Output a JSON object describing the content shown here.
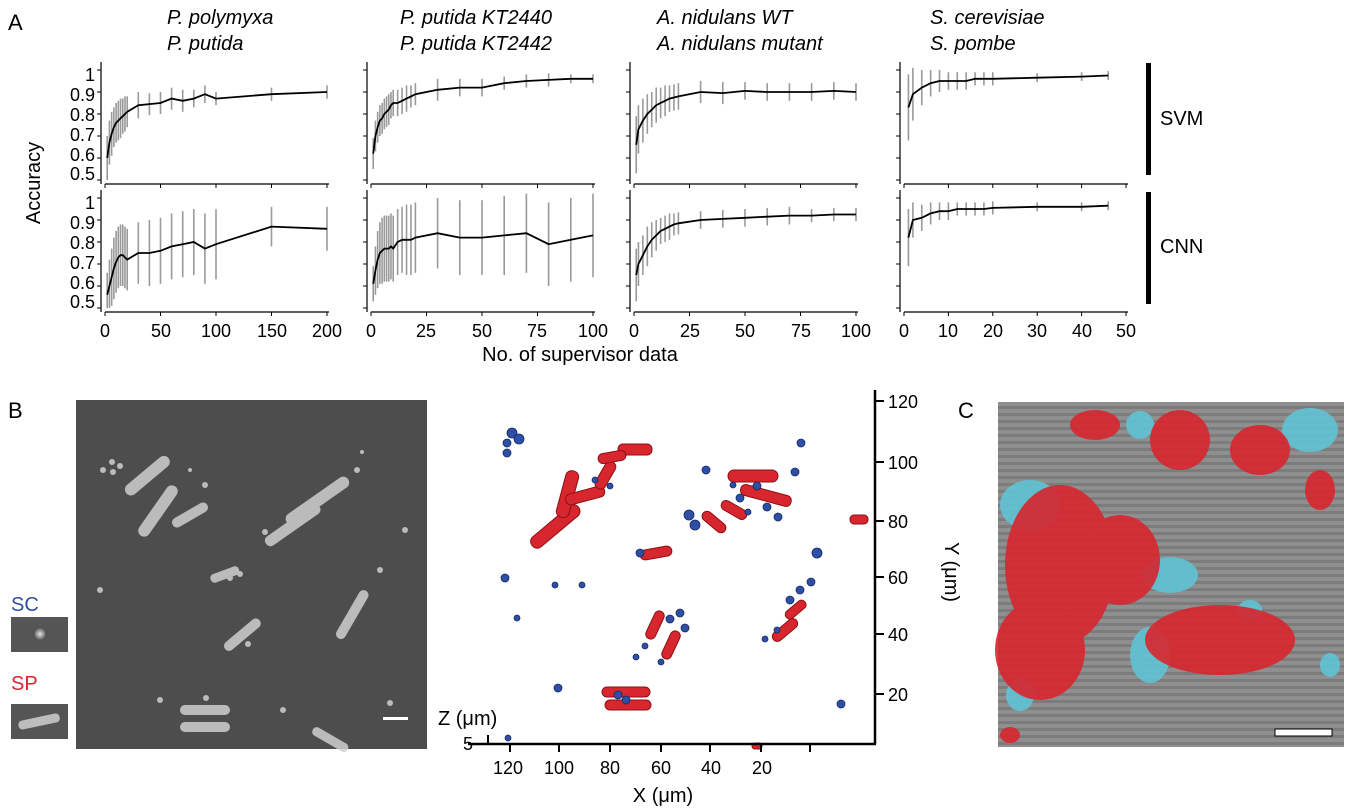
{
  "panel_labels": {
    "a": "A",
    "b": "B",
    "c": "C"
  },
  "colors": {
    "line": "#000000",
    "errorbar": "#9a9a9a",
    "sc": "#2e4fa3",
    "sp": "#d8262e"
  },
  "panel_a": {
    "ylabel": "Accuracy",
    "xlabel": "No. of supervisor data",
    "row_labels": [
      "SVM",
      "CNN"
    ],
    "yticks": [
      "1",
      "0.9",
      "0.8",
      "0.7",
      "0.6",
      "0.5"
    ],
    "column_titles": [
      [
        "P. polymyxa",
        "P. putida"
      ],
      [
        "P. putida KT2440",
        "P. putida KT2442"
      ],
      [
        "A. nidulans WT",
        "A. nidulans mutant"
      ],
      [
        "S. cerevisiae",
        "S. pombe"
      ]
    ],
    "xticks": [
      [
        "0",
        "50",
        "100",
        "150",
        "200"
      ],
      [
        "0",
        "25",
        "50",
        "75",
        "100"
      ],
      [
        "0",
        "25",
        "50",
        "75",
        "100"
      ],
      [
        "0",
        "10",
        "20",
        "30",
        "40",
        "50"
      ]
    ]
  },
  "panel_b": {
    "sc_label": "SC",
    "sp_label": "SP",
    "y_axis_label": "Y (μm)",
    "x_axis_label": "X (μm)",
    "z_axis_label": "Z (μm)",
    "y_ticks": [
      "120",
      "100",
      "80",
      "60",
      "40",
      "20"
    ],
    "x_ticks": [
      "120",
      "100",
      "80",
      "60",
      "40",
      "20"
    ],
    "z_tick": "5"
  },
  "chart_data": [
    {
      "type": "line",
      "title": "P. polymyxa / P. putida",
      "row": "SVM",
      "xlabel": "No. of supervisor data",
      "ylabel": "Accuracy",
      "xlim": [
        0,
        200
      ],
      "ylim": [
        0.5,
        1.05
      ],
      "x": [
        2,
        4,
        6,
        8,
        10,
        12,
        14,
        16,
        18,
        20,
        30,
        40,
        50,
        60,
        70,
        80,
        90,
        100,
        150,
        200
      ],
      "y": [
        0.6,
        0.67,
        0.71,
        0.74,
        0.76,
        0.77,
        0.78,
        0.79,
        0.8,
        0.81,
        0.84,
        0.845,
        0.85,
        0.87,
        0.86,
        0.87,
        0.89,
        0.87,
        0.89,
        0.9
      ],
      "err": [
        0.1,
        0.1,
        0.1,
        0.09,
        0.09,
        0.09,
        0.09,
        0.08,
        0.08,
        0.07,
        0.06,
        0.05,
        0.05,
        0.05,
        0.05,
        0.04,
        0.04,
        0.03,
        0.03,
        0.03
      ]
    },
    {
      "type": "line",
      "title": "P. putida KT2440 / P. putida KT2442",
      "row": "SVM",
      "xlabel": "No. of supervisor data",
      "ylabel": "Accuracy",
      "xlim": [
        0,
        100
      ],
      "ylim": [
        0.5,
        1.05
      ],
      "x": [
        1,
        2,
        3,
        4,
        5,
        6,
        7,
        8,
        9,
        10,
        12,
        14,
        16,
        18,
        20,
        30,
        40,
        50,
        60,
        70,
        80,
        90,
        100
      ],
      "y": [
        0.62,
        0.7,
        0.74,
        0.77,
        0.78,
        0.8,
        0.81,
        0.82,
        0.84,
        0.85,
        0.85,
        0.86,
        0.87,
        0.88,
        0.89,
        0.91,
        0.92,
        0.92,
        0.94,
        0.95,
        0.955,
        0.96,
        0.96
      ],
      "err": [
        0.07,
        0.07,
        0.07,
        0.07,
        0.07,
        0.07,
        0.07,
        0.07,
        0.06,
        0.06,
        0.06,
        0.06,
        0.06,
        0.05,
        0.05,
        0.05,
        0.04,
        0.04,
        0.03,
        0.03,
        0.03,
        0.02,
        0.02
      ]
    },
    {
      "type": "line",
      "title": "A. nidulans WT / A. nidulans mutant",
      "row": "SVM",
      "xlabel": "No. of supervisor data",
      "ylabel": "Accuracy",
      "xlim": [
        0,
        100
      ],
      "ylim": [
        0.5,
        1.05
      ],
      "x": [
        1,
        2,
        4,
        6,
        8,
        10,
        12,
        14,
        16,
        18,
        20,
        30,
        40,
        50,
        60,
        70,
        80,
        90,
        100
      ],
      "y": [
        0.66,
        0.73,
        0.77,
        0.8,
        0.82,
        0.84,
        0.85,
        0.86,
        0.87,
        0.875,
        0.88,
        0.9,
        0.895,
        0.905,
        0.9,
        0.9,
        0.9,
        0.905,
        0.9
      ],
      "err": [
        0.13,
        0.11,
        0.1,
        0.09,
        0.08,
        0.08,
        0.07,
        0.07,
        0.06,
        0.06,
        0.06,
        0.05,
        0.05,
        0.04,
        0.04,
        0.04,
        0.04,
        0.04,
        0.04
      ]
    },
    {
      "type": "line",
      "title": "S. cerevisiae / S. pombe",
      "row": "SVM",
      "xlabel": "No. of supervisor data",
      "ylabel": "Accuracy",
      "xlim": [
        0,
        50
      ],
      "ylim": [
        0.5,
        1.05
      ],
      "x": [
        1,
        2,
        4,
        6,
        8,
        10,
        12,
        14,
        16,
        18,
        20,
        30,
        40,
        46
      ],
      "y": [
        0.83,
        0.89,
        0.92,
        0.94,
        0.95,
        0.95,
        0.95,
        0.95,
        0.96,
        0.96,
        0.96,
        0.965,
        0.97,
        0.975
      ],
      "err": [
        0.15,
        0.12,
        0.08,
        0.06,
        0.05,
        0.04,
        0.04,
        0.04,
        0.03,
        0.03,
        0.03,
        0.02,
        0.02,
        0.02
      ]
    },
    {
      "type": "line",
      "title": "P. polymyxa / P. putida",
      "row": "CNN",
      "xlabel": "No. of supervisor data",
      "ylabel": "Accuracy",
      "xlim": [
        0,
        200
      ],
      "ylim": [
        0.5,
        1.05
      ],
      "x": [
        2,
        4,
        6,
        8,
        10,
        12,
        14,
        16,
        18,
        20,
        30,
        40,
        50,
        60,
        70,
        80,
        90,
        100,
        150,
        200
      ],
      "y": [
        0.56,
        0.6,
        0.64,
        0.68,
        0.71,
        0.73,
        0.74,
        0.74,
        0.73,
        0.72,
        0.75,
        0.75,
        0.76,
        0.78,
        0.79,
        0.8,
        0.77,
        0.79,
        0.87,
        0.86
      ],
      "err": [
        0.1,
        0.12,
        0.13,
        0.14,
        0.14,
        0.14,
        0.14,
        0.14,
        0.14,
        0.14,
        0.14,
        0.15,
        0.15,
        0.15,
        0.15,
        0.15,
        0.16,
        0.16,
        0.09,
        0.1
      ]
    },
    {
      "type": "line",
      "title": "P. putida KT2440 / P. putida KT2442",
      "row": "CNN",
      "xlabel": "No. of supervisor data",
      "ylabel": "Accuracy",
      "xlim": [
        0,
        100
      ],
      "ylim": [
        0.5,
        1.05
      ],
      "x": [
        1,
        2,
        3,
        4,
        5,
        6,
        7,
        8,
        9,
        10,
        12,
        14,
        16,
        18,
        20,
        30,
        40,
        50,
        60,
        70,
        80,
        90,
        100
      ],
      "y": [
        0.61,
        0.67,
        0.72,
        0.75,
        0.76,
        0.77,
        0.77,
        0.77,
        0.78,
        0.77,
        0.8,
        0.81,
        0.81,
        0.81,
        0.82,
        0.84,
        0.82,
        0.82,
        0.83,
        0.84,
        0.79,
        0.81,
        0.83
      ],
      "err": [
        0.08,
        0.11,
        0.13,
        0.14,
        0.15,
        0.15,
        0.15,
        0.15,
        0.15,
        0.15,
        0.15,
        0.15,
        0.16,
        0.16,
        0.16,
        0.16,
        0.17,
        0.17,
        0.18,
        0.18,
        0.19,
        0.19,
        0.19
      ]
    },
    {
      "type": "line",
      "title": "A. nidulans WT / A. nidulans mutant",
      "row": "CNN",
      "xlabel": "No. of supervisor data",
      "ylabel": "Accuracy",
      "xlim": [
        0,
        100
      ],
      "ylim": [
        0.5,
        1.05
      ],
      "x": [
        1,
        2,
        4,
        6,
        8,
        10,
        12,
        14,
        16,
        18,
        20,
        30,
        40,
        50,
        60,
        70,
        80,
        90,
        100
      ],
      "y": [
        0.65,
        0.7,
        0.74,
        0.78,
        0.81,
        0.83,
        0.85,
        0.86,
        0.87,
        0.88,
        0.885,
        0.9,
        0.905,
        0.91,
        0.915,
        0.92,
        0.92,
        0.925,
        0.925
      ],
      "err": [
        0.12,
        0.1,
        0.09,
        0.09,
        0.08,
        0.07,
        0.06,
        0.06,
        0.06,
        0.05,
        0.05,
        0.04,
        0.04,
        0.04,
        0.04,
        0.04,
        0.03,
        0.03,
        0.03
      ]
    },
    {
      "type": "line",
      "title": "S. cerevisiae / S. pombe",
      "row": "CNN",
      "xlabel": "No. of supervisor data",
      "ylabel": "Accuracy",
      "xlim": [
        0,
        50
      ],
      "ylim": [
        0.5,
        1.05
      ],
      "x": [
        1,
        2,
        4,
        6,
        8,
        10,
        12,
        14,
        16,
        18,
        20,
        30,
        40,
        46
      ],
      "y": [
        0.82,
        0.9,
        0.91,
        0.93,
        0.94,
        0.94,
        0.95,
        0.95,
        0.95,
        0.95,
        0.955,
        0.96,
        0.96,
        0.965
      ],
      "err": [
        0.13,
        0.08,
        0.06,
        0.05,
        0.04,
        0.04,
        0.03,
        0.03,
        0.03,
        0.03,
        0.03,
        0.02,
        0.02,
        0.02
      ]
    }
  ]
}
